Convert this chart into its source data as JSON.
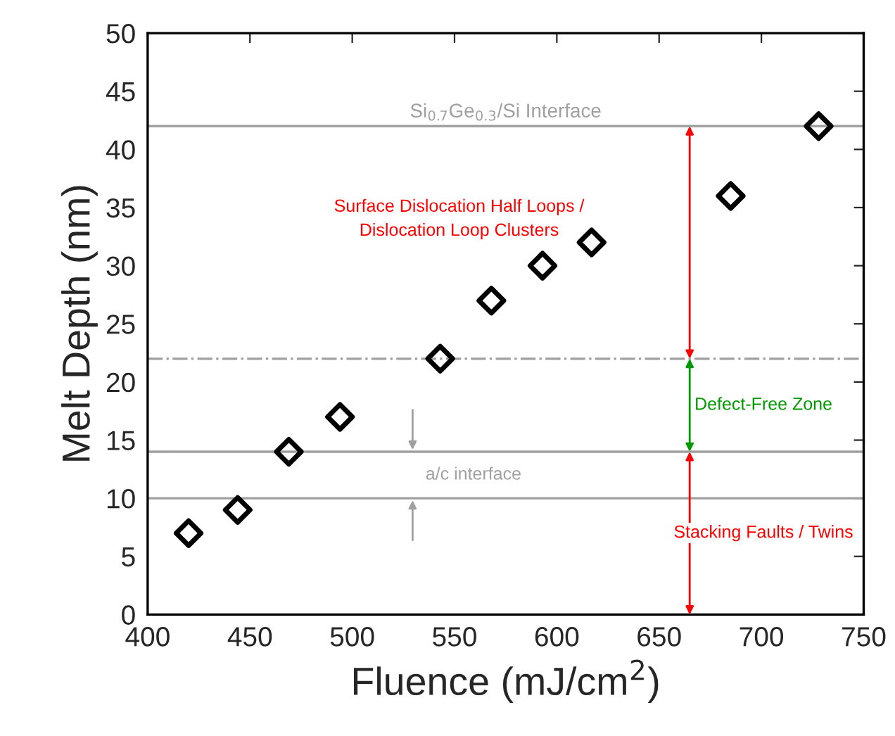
{
  "chart_data": {
    "type": "scatter",
    "xlabel": "Fluence (mJ/cm$^{2}$)",
    "ylabel": "Melt Depth (nm)",
    "x": [
      420,
      444,
      469,
      494,
      543,
      568,
      593,
      617,
      685,
      728
    ],
    "values": [
      7,
      9,
      14,
      17,
      22,
      27,
      30,
      32,
      36,
      42
    ],
    "color": "#000000",
    "marker": "diamond",
    "xlim": [
      400,
      750
    ],
    "xticks": [
      400,
      450,
      500,
      550,
      600,
      650,
      700,
      750
    ],
    "ylim": [
      0,
      50
    ],
    "yticks": [
      0,
      5,
      10,
      15,
      20,
      25,
      30,
      35,
      40,
      45,
      50
    ],
    "grid": false,
    "legend": false,
    "ref_lines": [
      {
        "axis": "y",
        "value": 42,
        "label": "Si$_{0.7}$Ge$_{0.3}$/Si Interface",
        "color": "#a0a0a0",
        "line_style": "solid"
      },
      {
        "axis": "y",
        "value": 22,
        "label": null,
        "color": "#a0a0a0",
        "line_style": "dashdot"
      },
      {
        "axis": "y",
        "value": 14,
        "label": null,
        "color": "#a0a0a0",
        "line_style": "solid"
      },
      {
        "axis": "y",
        "value": 10,
        "label": null,
        "color": "#a0a0a0",
        "line_style": "solid"
      }
    ],
    "annotations": [
      "Surface Dislocation Half Loops /\nDislocation Loop Clusters",
      "Defect-Free Zone",
      "Stacking Faults / Twins",
      "a/c interface"
    ]
  }
}
